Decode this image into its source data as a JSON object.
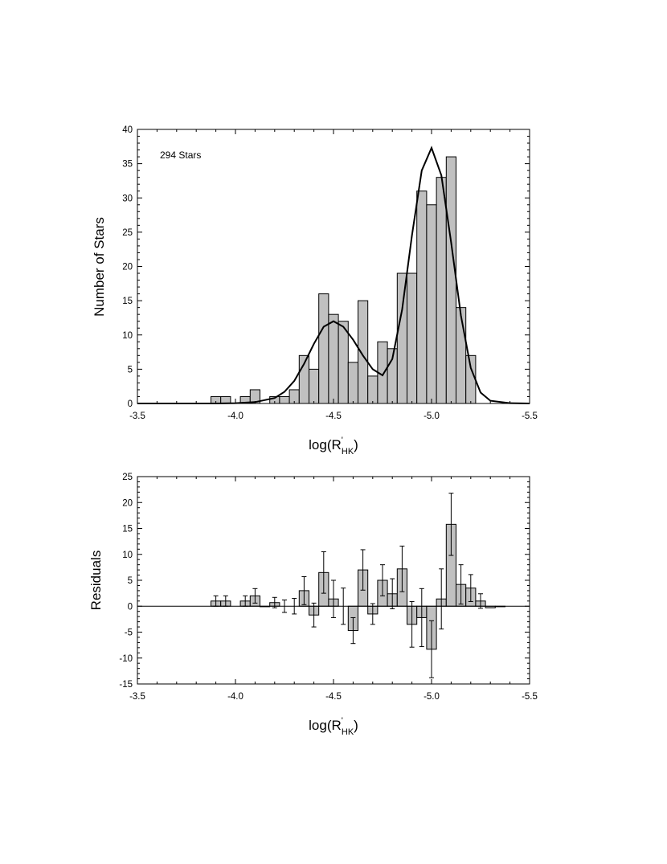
{
  "chart_data": [
    {
      "type": "bar",
      "subtype": "histogram with fitted double-gaussian curve",
      "xlabel": "log(R'HK)",
      "xlabel_parts": {
        "base": "log(R",
        "sup": "'",
        "sub": "HK",
        "close": ")"
      },
      "ylabel": "Number of Stars",
      "annotation": "294 Stars",
      "xlim": [
        -3.5,
        -5.5
      ],
      "ylim": [
        0,
        40
      ],
      "x_ticks": [
        "-3.5",
        "-4.0",
        "-4.5",
        "-5.0",
        "-5.5"
      ],
      "y_ticks": [
        "0",
        "5",
        "10",
        "15",
        "20",
        "25",
        "30",
        "35",
        "40"
      ],
      "bin_width": 0.05,
      "bin_left_edges": [
        -3.875,
        -3.925,
        -4.025,
        -4.075,
        -4.175,
        -4.225,
        -4.275,
        -4.325,
        -4.375,
        -4.425,
        -4.475,
        -4.525,
        -4.575,
        -4.625,
        -4.675,
        -4.725,
        -4.775,
        -4.825,
        -4.875,
        -4.925,
        -4.975,
        -5.025,
        -5.075,
        -5.125,
        -5.175
      ],
      "counts": [
        1,
        1,
        1,
        2,
        1,
        1,
        2,
        7,
        5,
        16,
        13,
        12,
        6,
        15,
        4,
        9,
        8,
        19,
        19,
        31,
        29,
        33,
        36,
        14,
        7
      ],
      "fit_curve": {
        "x": [
          -3.5,
          -3.6,
          -3.7,
          -3.8,
          -3.9,
          -4.0,
          -4.1,
          -4.2,
          -4.25,
          -4.3,
          -4.35,
          -4.4,
          -4.45,
          -4.5,
          -4.55,
          -4.6,
          -4.65,
          -4.7,
          -4.75,
          -4.8,
          -4.85,
          -4.9,
          -4.95,
          -5.0,
          -5.05,
          -5.1,
          -5.15,
          -5.2,
          -5.25,
          -5.3,
          -5.4,
          -5.5
        ],
        "y": [
          0,
          0,
          0,
          0,
          0,
          0.05,
          0.2,
          0.8,
          1.7,
          3.3,
          5.8,
          8.7,
          11.2,
          12.0,
          11.2,
          9.3,
          7.0,
          5.0,
          4.1,
          6.5,
          13.7,
          24.5,
          34.0,
          37.3,
          33.3,
          23.5,
          12.8,
          5.2,
          1.6,
          0.4,
          0.05,
          0
        ]
      }
    },
    {
      "type": "bar",
      "subtype": "residual bars with error bars",
      "xlabel": "log(R'HK)",
      "xlabel_parts": {
        "base": "log(R",
        "sup": "'",
        "sub": "HK",
        "close": ")"
      },
      "ylabel": "Residuals",
      "xlim": [
        -3.5,
        -5.5
      ],
      "ylim": [
        -15,
        25
      ],
      "x_ticks": [
        "-3.5",
        "-4.0",
        "-4.5",
        "-5.0",
        "-5.5"
      ],
      "y_ticks": [
        "-15",
        "-10",
        "-5",
        "0",
        "5",
        "10",
        "15",
        "20",
        "25"
      ],
      "bin_width": 0.05,
      "bin_left_edges": [
        -3.875,
        -3.925,
        -4.025,
        -4.075,
        -4.125,
        -4.175,
        -4.225,
        -4.275,
        -4.325,
        -4.375,
        -4.425,
        -4.475,
        -4.525,
        -4.575,
        -4.625,
        -4.675,
        -4.725,
        -4.775,
        -4.825,
        -4.875,
        -4.925,
        -4.975,
        -5.025,
        -5.075,
        -5.125,
        -5.175,
        -5.225,
        -5.275,
        -5.325
      ],
      "values": [
        1,
        1,
        1,
        2,
        -0.1,
        0.7,
        0,
        0,
        3,
        -1.7,
        6.5,
        1.4,
        0,
        -4.7,
        7,
        -1.5,
        5,
        2.4,
        7.2,
        -3.5,
        -2.2,
        -8.3,
        1.4,
        15.8,
        4.2,
        3.5,
        1,
        -0.3,
        -0.1
      ],
      "errors": [
        1,
        1,
        1,
        1.4,
        0,
        1,
        1.2,
        1.5,
        2.7,
        2.3,
        4,
        3.6,
        3.5,
        2.5,
        3.9,
        2,
        3,
        2.9,
        4.4,
        4.4,
        5.6,
        5.5,
        5.8,
        6,
        3.8,
        2.6,
        1.4,
        0,
        0
      ]
    }
  ]
}
